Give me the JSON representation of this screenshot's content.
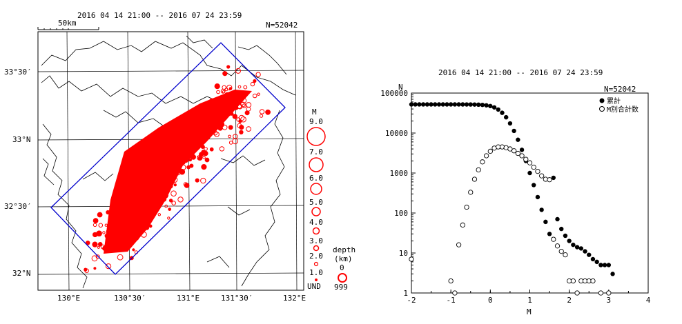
{
  "map": {
    "title": "2016 04 14 21:00 -- 2016 07 24 23:59",
    "count_label": "N=52042",
    "scale_label": "50km",
    "lat_labels": [
      "33°30′",
      "33°N",
      "32°30′",
      "32°N"
    ],
    "lon_labels": [
      "130°E",
      "130°30′",
      "131°E",
      "131°30′",
      "132°E"
    ],
    "region_box_color": "#0000cc",
    "quake_color": "#ff0000"
  },
  "legend": {
    "magnitude_title": "M",
    "magnitude_levels": [
      "9.0",
      "7.0",
      "6.0",
      "5.0",
      "4.0",
      "3.0",
      "2.0",
      "1.0",
      "UND"
    ],
    "depth_title": "depth",
    "depth_unit": "(km)",
    "depth_levels": [
      "0",
      "999"
    ]
  },
  "chart_data": {
    "type": "scatter",
    "title": "2016 04 14 21:00 -- 2016 07 24 23:59",
    "xlabel": "M",
    "ylabel": "N",
    "count_label": "N=52042",
    "xlim": [
      -2,
      4
    ],
    "ylim": [
      1,
      100000
    ],
    "y_scale": "log",
    "x_ticks": [
      "-2",
      "-1",
      "0",
      "1",
      "2",
      "3",
      "4"
    ],
    "y_ticks": [
      "1",
      "10",
      "100",
      "1000",
      "10000",
      "100000"
    ],
    "legend_position": "top-right",
    "series": [
      {
        "name": "累計",
        "marker": "filled-circle",
        "x": [
          -2.0,
          -1.9,
          -1.8,
          -1.7,
          -1.6,
          -1.5,
          -1.4,
          -1.3,
          -1.2,
          -1.1,
          -1.0,
          -0.9,
          -0.8,
          -0.7,
          -0.6,
          -0.5,
          -0.4,
          -0.3,
          -0.2,
          -0.1,
          0.0,
          0.1,
          0.2,
          0.3,
          0.4,
          0.5,
          0.6,
          0.7,
          0.8,
          0.9,
          1.0,
          1.1,
          1.2,
          1.3,
          1.4,
          1.5,
          1.6,
          1.7,
          1.8,
          1.9,
          2.0,
          2.1,
          2.2,
          2.3,
          2.4,
          2.5,
          2.6,
          2.7,
          2.8,
          2.9,
          3.0,
          3.1
        ],
        "y": [
          52042,
          52042,
          52041,
          52040,
          52038,
          52035,
          52030,
          52025,
          52018,
          52010,
          52000,
          51990,
          51970,
          51940,
          51900,
          51820,
          51650,
          51300,
          50600,
          49400,
          47300,
          43800,
          38700,
          32100,
          24800,
          17400,
          11300,
          6800,
          3800,
          2000,
          1000,
          500,
          250,
          120,
          60,
          30,
          760,
          70,
          40,
          27,
          20,
          16,
          14,
          13,
          11,
          9,
          7,
          6,
          5,
          5,
          5,
          3
        ]
      },
      {
        "name": "M別合計数",
        "marker": "open-circle",
        "x": [
          -2.0,
          -1.0,
          -0.9,
          -0.8,
          -0.7,
          -0.6,
          -0.5,
          -0.4,
          -0.3,
          -0.2,
          -0.1,
          0.0,
          0.1,
          0.2,
          0.3,
          0.4,
          0.5,
          0.6,
          0.7,
          0.8,
          0.9,
          1.0,
          1.1,
          1.2,
          1.3,
          1.4,
          1.5,
          1.6,
          1.7,
          1.8,
          1.9,
          2.0,
          2.1,
          2.2,
          2.3,
          2.4,
          2.5,
          2.6,
          2.8,
          3.0
        ],
        "y": [
          7,
          2,
          1,
          16,
          50,
          140,
          330,
          700,
          1200,
          1900,
          2700,
          3500,
          4200,
          4500,
          4500,
          4300,
          4000,
          3600,
          3100,
          2700,
          2200,
          1800,
          1400,
          1100,
          850,
          700,
          680,
          22,
          15,
          11,
          9,
          2,
          2,
          1,
          2,
          2,
          2,
          2,
          1,
          1
        ]
      }
    ]
  }
}
